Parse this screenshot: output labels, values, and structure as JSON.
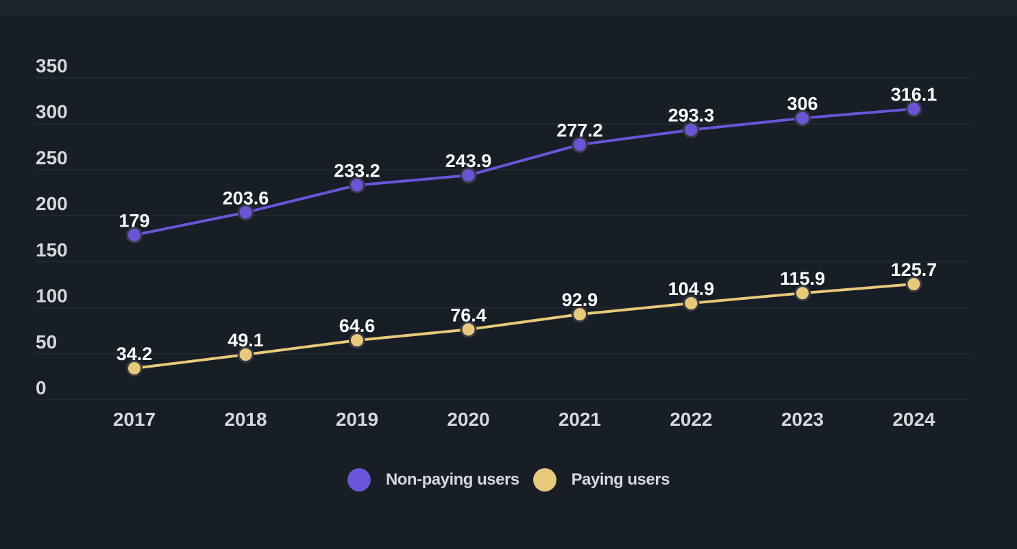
{
  "chart_data": {
    "type": "line",
    "categories": [
      "2017",
      "2018",
      "2019",
      "2020",
      "2021",
      "2022",
      "2023",
      "2024"
    ],
    "series": [
      {
        "name": "Non-paying users",
        "color": "#6a55d8",
        "values": [
          179,
          203.6,
          233.2,
          243.9,
          277.2,
          293.3,
          306,
          316.1
        ],
        "labels": [
          "179",
          "203.6",
          "233.2",
          "243.9",
          "277.2",
          "293.3",
          "306",
          "316.1"
        ]
      },
      {
        "name": "Paying users",
        "color": "#e8c97a",
        "values": [
          34.2,
          49.1,
          64.6,
          76.4,
          92.9,
          104.9,
          115.9,
          125.7
        ],
        "labels": [
          "34.2",
          "49.1",
          "64.6",
          "76.4",
          "92.9",
          "104.9",
          "115.9",
          "125.7"
        ]
      }
    ],
    "yticks": [
      "0",
      "50",
      "100",
      "150",
      "200",
      "250",
      "300",
      "350"
    ],
    "ylim": [
      0,
      350
    ],
    "grid": true,
    "legend_position": "bottom-center"
  }
}
